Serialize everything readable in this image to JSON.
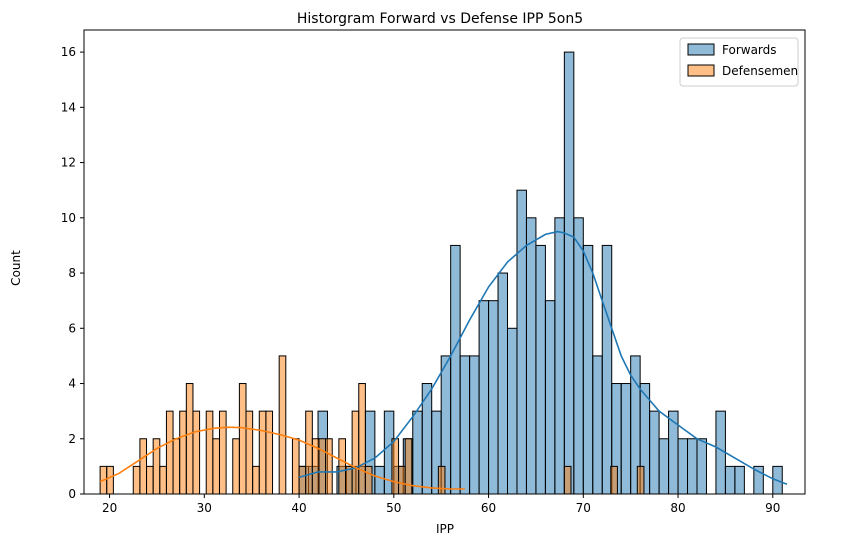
{
  "chart_data": {
    "type": "bar",
    "title": "Historgram Forward vs Defense IPP 5on5",
    "xlabel": "IPP",
    "ylabel": "Count",
    "xlim": [
      17.3,
      93.4
    ],
    "ylim": [
      0,
      16.8
    ],
    "xticks": [
      20,
      30,
      40,
      50,
      60,
      70,
      80,
      90
    ],
    "yticks": [
      0,
      2,
      4,
      6,
      8,
      10,
      12,
      14,
      16
    ],
    "grid": false,
    "legend_position": "top-right",
    "series": [
      {
        "name": "Forwards",
        "color": "#1f77b4",
        "bin_width": 1.0,
        "bin_start": 40.0,
        "values": [
          1,
          1,
          3,
          0,
          1,
          1,
          1,
          3,
          1,
          3,
          1,
          2,
          3,
          4,
          3,
          5,
          9,
          5,
          5,
          7,
          7,
          8,
          6,
          11,
          10,
          9,
          7,
          10,
          16,
          10,
          9,
          5,
          9,
          4,
          4,
          5,
          4,
          3,
          2,
          3,
          2,
          2,
          2,
          0,
          3,
          1,
          1,
          0,
          1,
          0,
          1
        ],
        "kde": [
          [
            40,
            0.6
          ],
          [
            42,
            0.8
          ],
          [
            44,
            0.8
          ],
          [
            46,
            0.95
          ],
          [
            48,
            1.3
          ],
          [
            50,
            1.9
          ],
          [
            52,
            2.8
          ],
          [
            54,
            3.8
          ],
          [
            56,
            5.0
          ],
          [
            58,
            6.3
          ],
          [
            60,
            7.5
          ],
          [
            62,
            8.4
          ],
          [
            64,
            9.0
          ],
          [
            66,
            9.4
          ],
          [
            67.3,
            9.5
          ],
          [
            68,
            9.45
          ],
          [
            69,
            9.3
          ],
          [
            70,
            8.8
          ],
          [
            71,
            8.0
          ],
          [
            72,
            7.0
          ],
          [
            73,
            6.0
          ],
          [
            74,
            5.0
          ],
          [
            75,
            4.3
          ],
          [
            76,
            3.8
          ],
          [
            78,
            3.0
          ],
          [
            80,
            2.5
          ],
          [
            82,
            2.0
          ],
          [
            84,
            1.7
          ],
          [
            86,
            1.3
          ],
          [
            88,
            0.9
          ],
          [
            90,
            0.55
          ],
          [
            91.5,
            0.35
          ]
        ]
      },
      {
        "name": "Defensemen",
        "color": "#ff7f0e",
        "bin_width": 0.7,
        "bin_start": 19.0,
        "values": [
          1,
          1,
          0,
          0,
          0,
          1,
          2,
          1,
          2,
          1,
          3,
          2,
          3,
          4,
          3,
          0,
          3,
          2,
          3,
          0,
          2,
          4,
          3,
          1,
          3,
          3,
          0,
          5,
          0,
          2,
          1,
          3,
          2,
          2,
          2,
          0,
          2,
          1,
          3,
          4,
          1,
          0,
          0,
          0,
          2,
          1,
          2,
          0,
          0,
          0,
          0,
          1,
          0,
          0,
          0,
          0,
          0,
          0,
          0,
          0,
          0,
          0,
          0,
          0,
          0,
          0,
          0,
          0,
          0,
          0,
          1,
          0,
          0,
          0,
          0,
          0,
          0,
          1,
          0,
          0,
          0,
          1,
          0,
          0,
          0
        ],
        "kde": [
          [
            19,
            0.45
          ],
          [
            21,
            0.75
          ],
          [
            23,
            1.2
          ],
          [
            25,
            1.65
          ],
          [
            27,
            2.0
          ],
          [
            29,
            2.25
          ],
          [
            31,
            2.38
          ],
          [
            32.5,
            2.42
          ],
          [
            34,
            2.4
          ],
          [
            36,
            2.3
          ],
          [
            38,
            2.15
          ],
          [
            40,
            1.95
          ],
          [
            42,
            1.65
          ],
          [
            44,
            1.3
          ],
          [
            46,
            0.95
          ],
          [
            48,
            0.65
          ],
          [
            50,
            0.45
          ],
          [
            52,
            0.3
          ],
          [
            54,
            0.22
          ],
          [
            56,
            0.18
          ],
          [
            57.5,
            0.18
          ]
        ]
      }
    ]
  }
}
